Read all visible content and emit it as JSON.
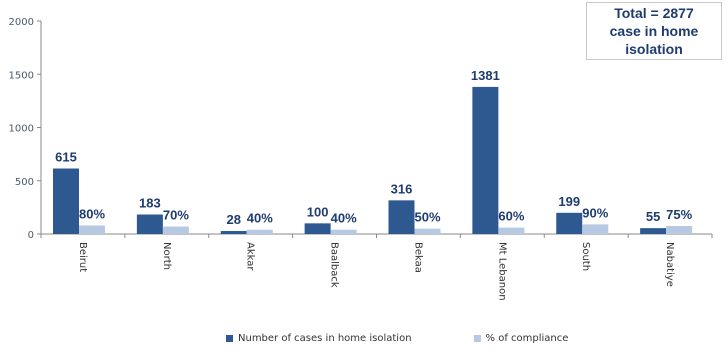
{
  "chart_data": {
    "type": "bar",
    "categories": [
      "Beirut",
      "North",
      "Akkar",
      "Baalback",
      "Bekaa",
      "Mt Lebanon",
      "South",
      "Nabatiye"
    ],
    "series": [
      {
        "name": "Number of cases in home isolation",
        "values": [
          615,
          183,
          28,
          100,
          316,
          1381,
          199,
          55
        ],
        "labels": [
          "615",
          "183",
          "28",
          "100",
          "316",
          "1381",
          "199",
          "55"
        ],
        "color": "#2e5990"
      },
      {
        "name": "% of compliance",
        "values": [
          80,
          70,
          40,
          40,
          50,
          60,
          90,
          75
        ],
        "labels": [
          "80%",
          "70%",
          "40%",
          "40%",
          "50%",
          "60%",
          "90%",
          "75%"
        ],
        "color": "#b6c8e2"
      }
    ],
    "ylim": [
      0,
      2000
    ],
    "yticks": [
      0,
      500,
      1000,
      1500,
      2000
    ],
    "grid": false,
    "legend_position": "bottom",
    "annotation": "Total = 2877 case in home isolation"
  }
}
